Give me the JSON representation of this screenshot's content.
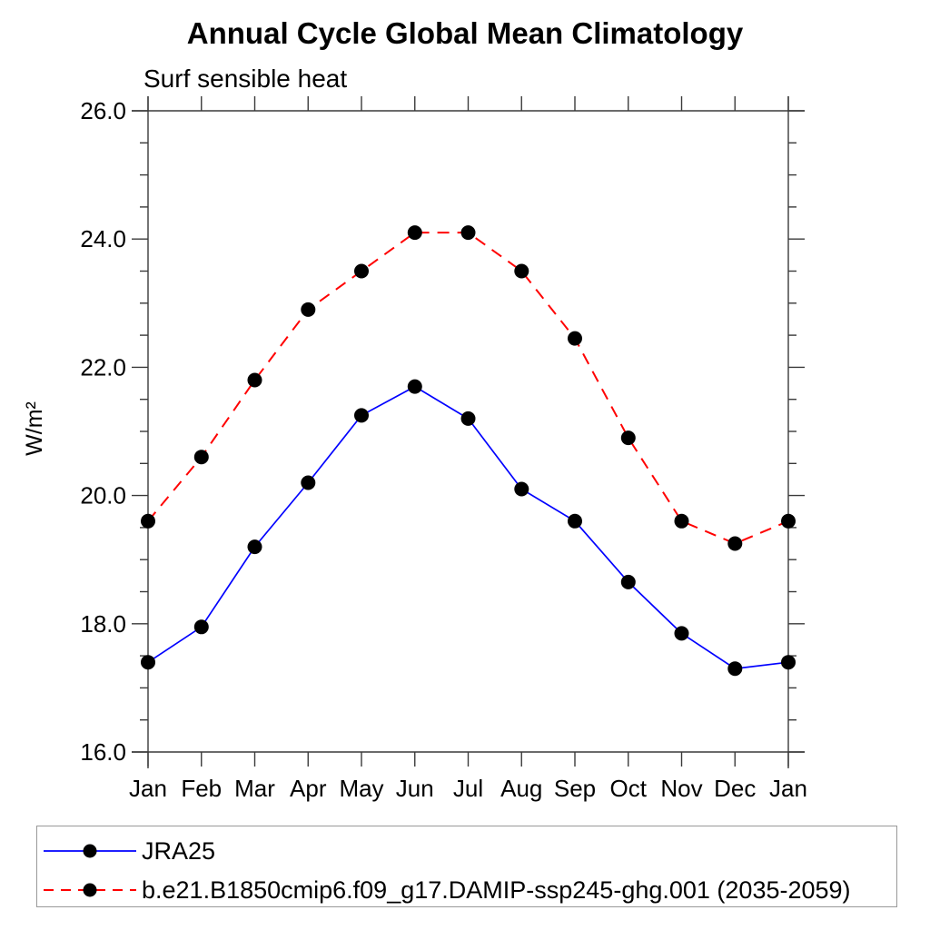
{
  "chart_data": {
    "type": "line",
    "title": "Annual Cycle Global Mean Climatology",
    "subtitle": "Surf sensible heat",
    "xlabel": "",
    "ylabel": "W/m²",
    "categories": [
      "Jan",
      "Feb",
      "Mar",
      "Apr",
      "May",
      "Jun",
      "Jul",
      "Aug",
      "Sep",
      "Oct",
      "Nov",
      "Dec",
      "Jan"
    ],
    "ylim": [
      16.0,
      26.0
    ],
    "ytick_major_interval": 2.0,
    "ytick_minor_interval": 0.5,
    "ytick_labels": [
      "16.0",
      "18.0",
      "20.0",
      "22.0",
      "24.0",
      "26.0"
    ],
    "grid": false,
    "legend_position": "bottom-box",
    "marker": {
      "shape": "circle",
      "color": "#000000",
      "radius": 8
    },
    "axis_color": "#3a3a3a",
    "series": [
      {
        "name": "JRA25",
        "color": "#0000ff",
        "line_style": "solid",
        "line_width": 1.7,
        "values": [
          17.4,
          17.95,
          19.2,
          20.2,
          21.25,
          21.7,
          21.2,
          20.1,
          19.6,
          18.65,
          17.85,
          17.3,
          17.4
        ]
      },
      {
        "name": "b.e21.B1850cmip6.f09_g17.DAMIP-ssp245-ghg.001 (2035-2059)",
        "color": "#ff0000",
        "line_style": "dashed",
        "line_width": 2,
        "dash": "13 9",
        "values": [
          19.6,
          20.6,
          21.8,
          22.9,
          23.5,
          24.1,
          24.1,
          23.5,
          22.45,
          20.9,
          19.6,
          19.25,
          19.6
        ]
      }
    ]
  }
}
